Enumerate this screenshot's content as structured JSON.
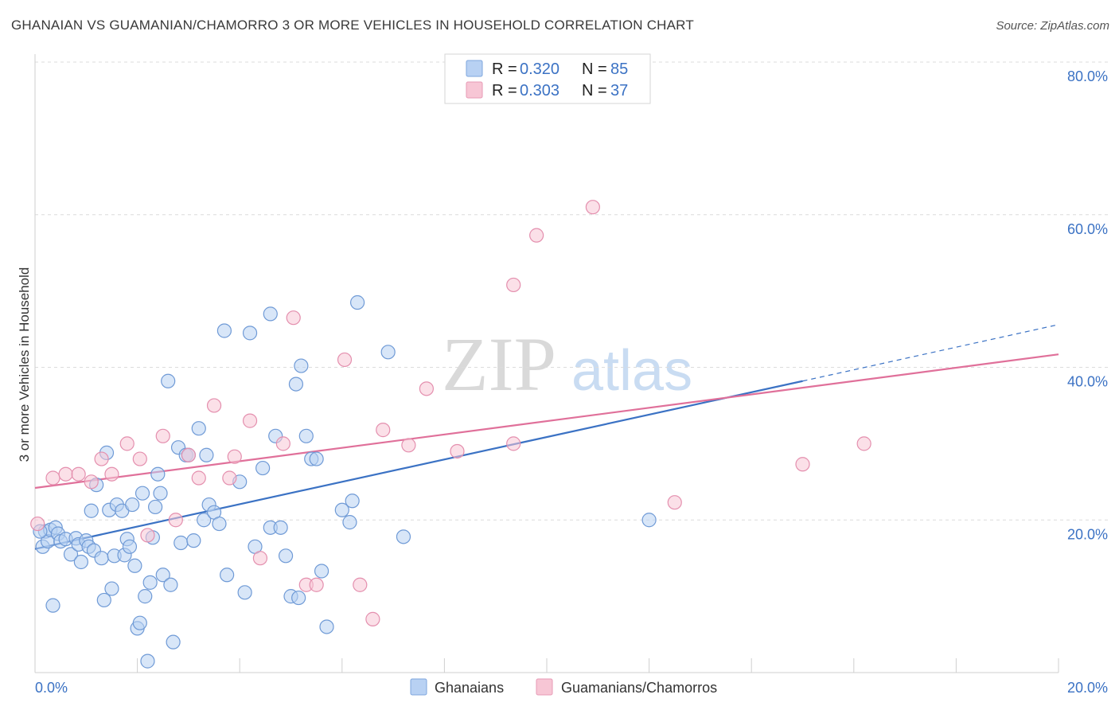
{
  "title": "GHANAIAN VS GUAMANIAN/CHAMORRO 3 OR MORE VEHICLES IN HOUSEHOLD CORRELATION CHART",
  "source": "Source: ZipAtlas.com",
  "watermark": {
    "zip": "ZIP",
    "atlas": "atlas"
  },
  "colors": {
    "blue": "#3b72c4",
    "blue_fill": "#b8d1f3",
    "pink": "#e0709a",
    "pink_fill": "#f7c6d5"
  },
  "chart_data": {
    "type": "scatter",
    "xlabel": "",
    "ylabel": "3 or more Vehicles in Household",
    "xlim": [
      0,
      20
    ],
    "ylim": [
      0,
      80
    ],
    "x_tick_labels": [
      "0.0%",
      "20.0%"
    ],
    "y_ticks": [
      20,
      40,
      60,
      80
    ],
    "y_tick_labels": [
      "20.0%",
      "40.0%",
      "60.0%",
      "80.0%"
    ],
    "legend": [
      {
        "r_label": "R =",
        "r_value": "0.320",
        "n_label": "N =",
        "n_value": "85"
      },
      {
        "r_label": "R =",
        "r_value": "0.303",
        "n_label": "N =",
        "n_value": "37"
      }
    ],
    "series": [
      {
        "name": "Ghanaians",
        "color": "#3b72c4",
        "trend": {
          "x0": 0,
          "y0": 16.2,
          "x1": 15.0,
          "y1": 38.2,
          "x_dash_end": 20.0,
          "y_dash_end": 45.6
        },
        "points": [
          [
            0.15,
            16.5
          ],
          [
            0.2,
            18.5
          ],
          [
            0.25,
            17.2
          ],
          [
            0.3,
            18.7
          ],
          [
            0.4,
            19.0
          ],
          [
            0.45,
            18.2
          ],
          [
            0.5,
            17.2
          ],
          [
            0.6,
            17.5
          ],
          [
            0.7,
            15.5
          ],
          [
            0.8,
            17.6
          ],
          [
            0.85,
            16.8
          ],
          [
            0.9,
            14.5
          ],
          [
            1.0,
            17.3
          ],
          [
            1.05,
            16.5
          ],
          [
            1.1,
            21.2
          ],
          [
            1.15,
            16.0
          ],
          [
            1.2,
            24.6
          ],
          [
            1.3,
            15.0
          ],
          [
            1.35,
            9.5
          ],
          [
            1.4,
            28.8
          ],
          [
            1.45,
            21.3
          ],
          [
            1.5,
            11.0
          ],
          [
            1.55,
            15.3
          ],
          [
            1.6,
            22.0
          ],
          [
            1.7,
            21.2
          ],
          [
            1.75,
            15.4
          ],
          [
            1.8,
            17.5
          ],
          [
            1.85,
            16.5
          ],
          [
            1.9,
            22.0
          ],
          [
            1.95,
            14.0
          ],
          [
            2.0,
            5.8
          ],
          [
            2.05,
            6.5
          ],
          [
            2.1,
            23.5
          ],
          [
            2.15,
            10.0
          ],
          [
            2.2,
            1.5
          ],
          [
            2.25,
            11.8
          ],
          [
            2.3,
            17.7
          ],
          [
            2.35,
            21.7
          ],
          [
            2.4,
            26.0
          ],
          [
            2.45,
            23.5
          ],
          [
            2.5,
            12.8
          ],
          [
            2.6,
            38.2
          ],
          [
            2.65,
            11.5
          ],
          [
            2.7,
            4.0
          ],
          [
            2.8,
            29.5
          ],
          [
            2.85,
            17.0
          ],
          [
            2.95,
            28.5
          ],
          [
            3.0,
            28.5
          ],
          [
            3.1,
            17.3
          ],
          [
            3.2,
            32.0
          ],
          [
            3.3,
            20.0
          ],
          [
            3.35,
            28.5
          ],
          [
            3.4,
            22.0
          ],
          [
            3.5,
            21.0
          ],
          [
            3.6,
            19.5
          ],
          [
            3.7,
            44.8
          ],
          [
            3.75,
            12.8
          ],
          [
            4.0,
            25.0
          ],
          [
            4.1,
            10.5
          ],
          [
            4.2,
            44.5
          ],
          [
            4.3,
            16.5
          ],
          [
            4.45,
            26.8
          ],
          [
            4.6,
            47.0
          ],
          [
            4.6,
            19.0
          ],
          [
            4.7,
            31.0
          ],
          [
            4.8,
            19.0
          ],
          [
            4.9,
            15.3
          ],
          [
            5.0,
            10.0
          ],
          [
            5.1,
            37.8
          ],
          [
            5.15,
            9.8
          ],
          [
            5.2,
            40.2
          ],
          [
            5.3,
            31.0
          ],
          [
            5.4,
            28.0
          ],
          [
            5.5,
            28.0
          ],
          [
            5.6,
            13.3
          ],
          [
            5.7,
            6.0
          ],
          [
            6.0,
            21.3
          ],
          [
            6.15,
            19.7
          ],
          [
            6.2,
            22.5
          ],
          [
            6.3,
            48.5
          ],
          [
            6.9,
            42.0
          ],
          [
            7.2,
            17.8
          ],
          [
            12.0,
            20.0
          ],
          [
            0.1,
            18.5
          ],
          [
            0.35,
            8.8
          ]
        ]
      },
      {
        "name": "Guamanians/Chamorros",
        "color": "#e0709a",
        "trend": {
          "x0": 0,
          "y0": 24.2,
          "x1": 20.0,
          "y1": 41.7
        },
        "points": [
          [
            0.05,
            19.5
          ],
          [
            0.35,
            25.5
          ],
          [
            0.6,
            26.0
          ],
          [
            0.85,
            26.0
          ],
          [
            1.1,
            25.0
          ],
          [
            1.3,
            28.0
          ],
          [
            1.5,
            26.0
          ],
          [
            1.8,
            30.0
          ],
          [
            2.05,
            28.0
          ],
          [
            2.2,
            18.0
          ],
          [
            2.5,
            31.0
          ],
          [
            2.75,
            20.0
          ],
          [
            3.0,
            28.5
          ],
          [
            3.2,
            25.5
          ],
          [
            3.5,
            35.0
          ],
          [
            3.8,
            25.5
          ],
          [
            3.9,
            28.3
          ],
          [
            4.2,
            33.0
          ],
          [
            4.4,
            15.0
          ],
          [
            4.85,
            30.0
          ],
          [
            5.05,
            46.5
          ],
          [
            5.3,
            11.5
          ],
          [
            5.5,
            11.5
          ],
          [
            6.05,
            41.0
          ],
          [
            6.35,
            11.5
          ],
          [
            6.6,
            7.0
          ],
          [
            6.8,
            31.8
          ],
          [
            7.3,
            29.8
          ],
          [
            7.65,
            37.2
          ],
          [
            8.25,
            29.0
          ],
          [
            9.35,
            30.0
          ],
          [
            9.35,
            50.8
          ],
          [
            9.8,
            57.3
          ],
          [
            10.9,
            61.0
          ],
          [
            12.5,
            22.3
          ],
          [
            15.0,
            27.3
          ],
          [
            16.2,
            30.0
          ]
        ]
      }
    ]
  }
}
